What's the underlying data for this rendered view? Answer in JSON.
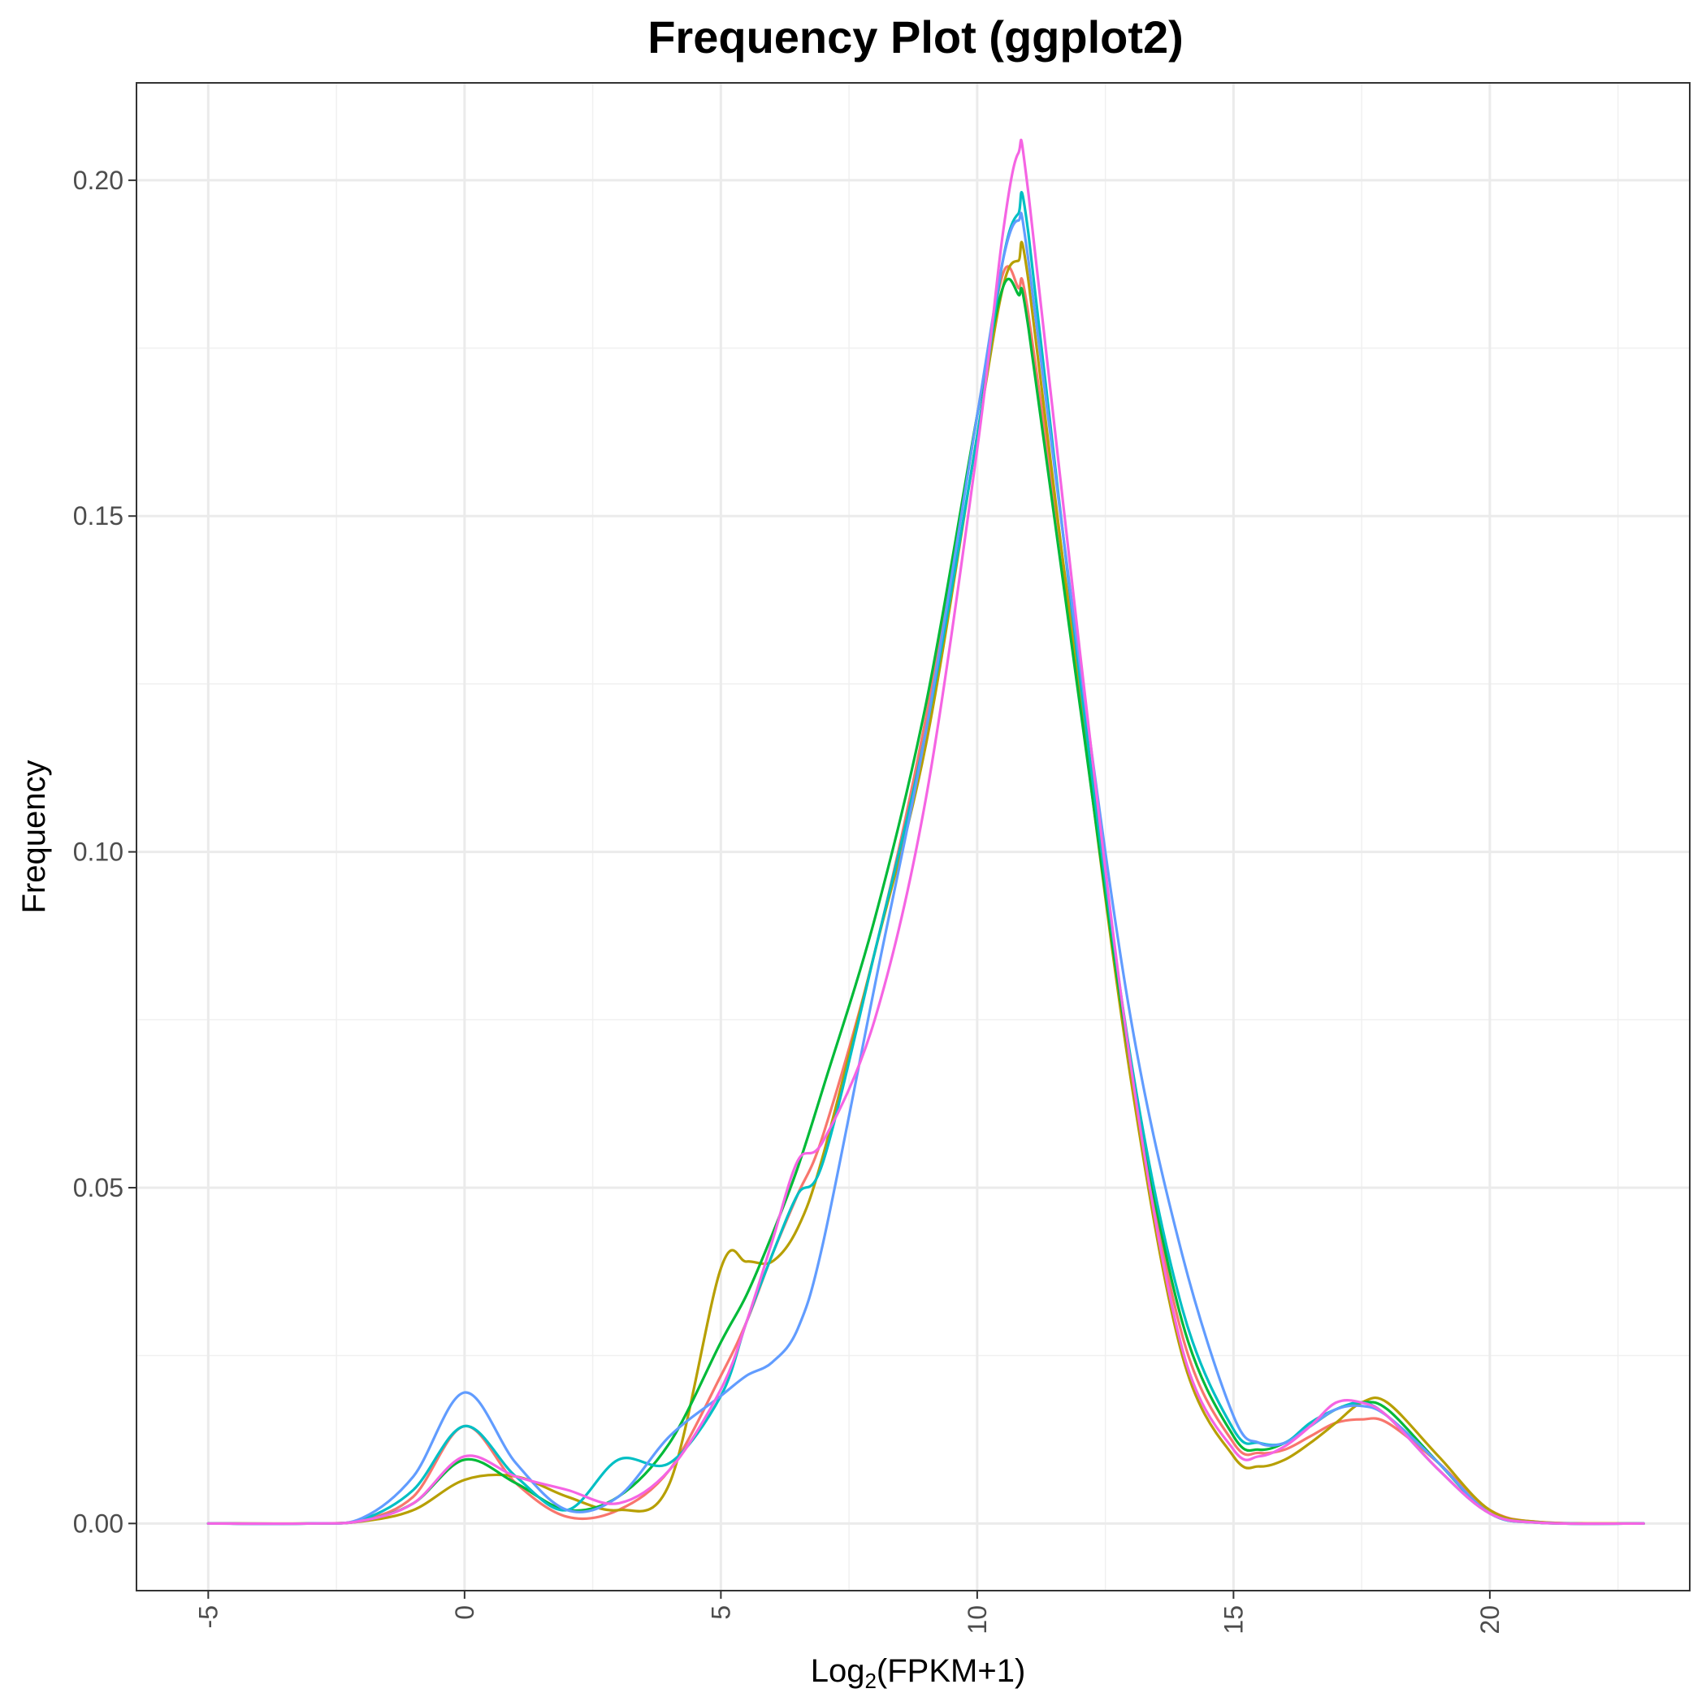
{
  "chart_data": {
    "type": "line",
    "title": "Frequency Plot (ggplot2)",
    "xlabel_main": "Log",
    "xlabel_sub": "2",
    "xlabel_rest": "(FPKM+1)",
    "ylabel": "Frequency",
    "xlim": [
      -6.4,
      23.9
    ],
    "ylim": [
      -0.01,
      0.2145
    ],
    "x_ticks": [
      -5,
      0,
      5,
      10,
      15,
      20
    ],
    "x_tick_labels": [
      "-5",
      "0",
      "5",
      "10",
      "15",
      "20"
    ],
    "y_ticks": [
      0.0,
      0.05,
      0.1,
      0.15,
      0.2
    ],
    "y_tick_labels": [
      "0.00",
      "0.05",
      "0.10",
      "0.15",
      "0.20"
    ],
    "grid": true,
    "legend": "none",
    "x": [
      -5,
      -3,
      -2,
      -1,
      0,
      1,
      2,
      3,
      4,
      5,
      5.5,
      6,
      6.5,
      7,
      8,
      9,
      10,
      10.5,
      10.8,
      11,
      12,
      13,
      14,
      15,
      15.5,
      16,
      16.5,
      17,
      17.5,
      18,
      19,
      20,
      21,
      23
    ],
    "series": [
      {
        "color": "#F8766D",
        "values": [
          0,
          0,
          0.0005,
          0.004,
          0.0145,
          0.006,
          0.001,
          0.002,
          0.008,
          0.022,
          0.03,
          0.04,
          0.049,
          0.058,
          0.085,
          0.12,
          0.165,
          0.186,
          0.184,
          0.18,
          0.125,
          0.068,
          0.028,
          0.012,
          0.0105,
          0.011,
          0.013,
          0.015,
          0.0155,
          0.015,
          0.009,
          0.002,
          0.0002,
          0
        ]
      },
      {
        "color": "#B79F00",
        "values": [
          0,
          0,
          0.0003,
          0.002,
          0.0065,
          0.007,
          0.004,
          0.002,
          0.006,
          0.038,
          0.039,
          0.039,
          0.044,
          0.055,
          0.085,
          0.116,
          0.162,
          0.184,
          0.188,
          0.185,
          0.123,
          0.066,
          0.025,
          0.01,
          0.0085,
          0.0095,
          0.012,
          0.015,
          0.018,
          0.018,
          0.01,
          0.002,
          0.0002,
          0
        ]
      },
      {
        "color": "#00BA38",
        "values": [
          0,
          0,
          0.0004,
          0.003,
          0.0095,
          0.006,
          0.002,
          0.004,
          0.012,
          0.027,
          0.034,
          0.043,
          0.053,
          0.065,
          0.09,
          0.122,
          0.165,
          0.184,
          0.183,
          0.178,
          0.122,
          0.068,
          0.03,
          0.013,
          0.011,
          0.012,
          0.0145,
          0.017,
          0.018,
          0.017,
          0.009,
          0.0015,
          0.0001,
          0
        ]
      },
      {
        "color": "#00BFC4",
        "values": [
          0,
          0,
          0.0006,
          0.005,
          0.0145,
          0.007,
          0.002,
          0.0095,
          0.009,
          0.019,
          0.03,
          0.04,
          0.049,
          0.054,
          0.085,
          0.118,
          0.162,
          0.188,
          0.195,
          0.192,
          0.126,
          0.069,
          0.032,
          0.014,
          0.012,
          0.012,
          0.015,
          0.017,
          0.018,
          0.016,
          0.008,
          0.0015,
          0.0001,
          0
        ]
      },
      {
        "color": "#619CFF",
        "values": [
          0,
          0,
          0.0008,
          0.007,
          0.0195,
          0.009,
          0.002,
          0.004,
          0.013,
          0.019,
          0.022,
          0.024,
          0.029,
          0.042,
          0.08,
          0.118,
          0.165,
          0.188,
          0.194,
          0.188,
          0.128,
          0.075,
          0.04,
          0.016,
          0.012,
          0.012,
          0.0145,
          0.017,
          0.0175,
          0.016,
          0.009,
          0.0015,
          0.0001,
          0
        ]
      },
      {
        "color": "#F564E3",
        "values": [
          0,
          0,
          0.0004,
          0.003,
          0.01,
          0.007,
          0.005,
          0.003,
          0.008,
          0.02,
          0.03,
          0.042,
          0.054,
          0.057,
          0.075,
          0.108,
          0.16,
          0.192,
          0.204,
          0.198,
          0.13,
          0.068,
          0.026,
          0.011,
          0.01,
          0.0115,
          0.0145,
          0.018,
          0.018,
          0.016,
          0.008,
          0.0015,
          0.0001,
          0
        ]
      }
    ]
  }
}
